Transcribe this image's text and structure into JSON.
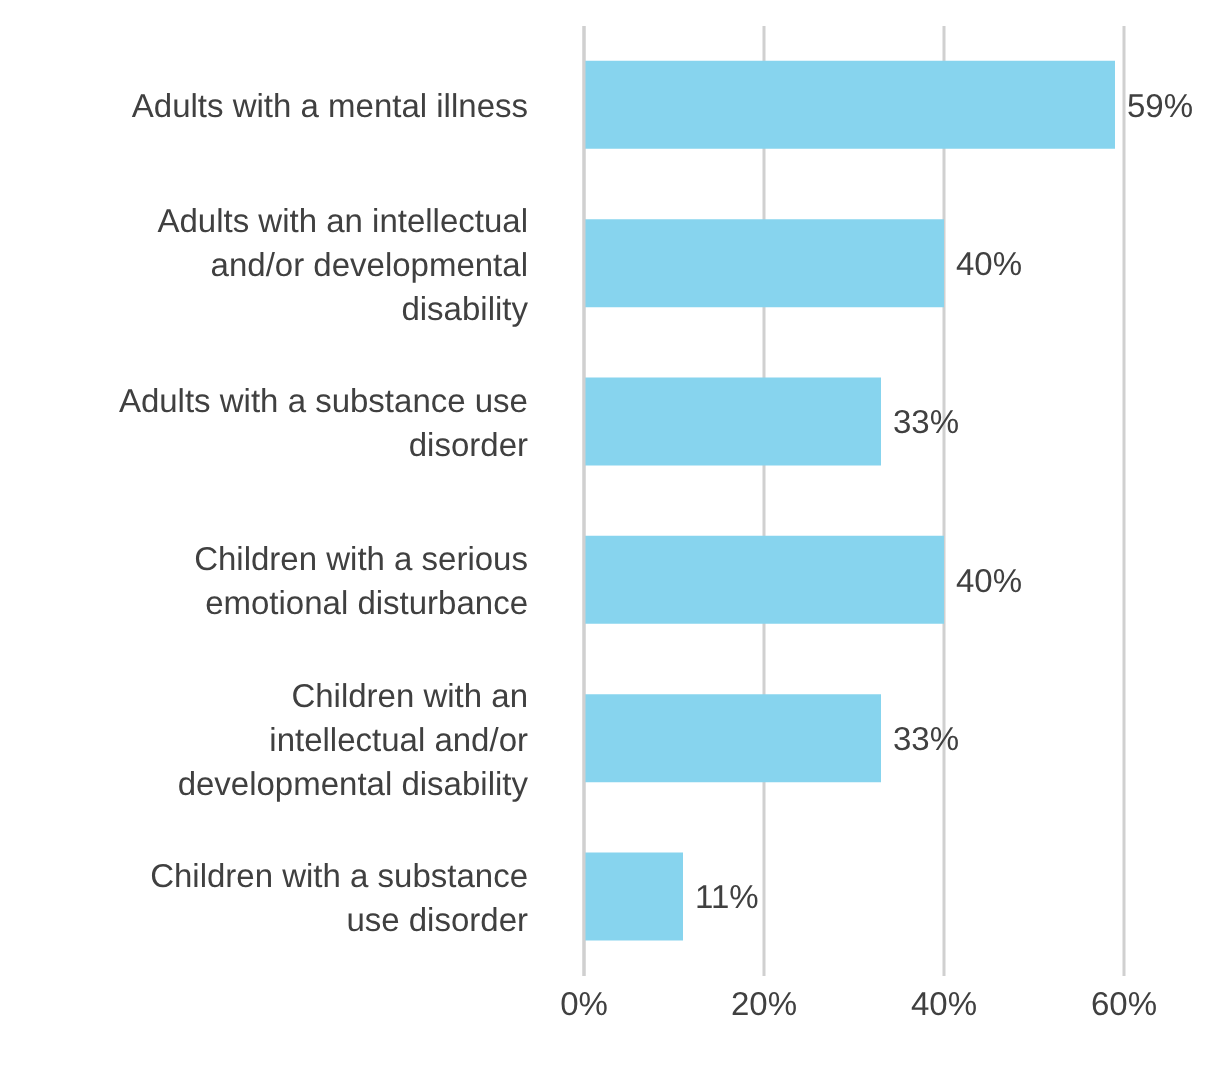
{
  "chart_data": {
    "type": "bar",
    "orientation": "horizontal",
    "categories": [
      "Adults with a mental illness",
      "Adults with an intellectual and/or developmental disability",
      "Adults with a substance use disorder",
      "Children with a serious emotional disturbance",
      "Children with an intellectual and/or developmental disability",
      "Children with a substance use disorder"
    ],
    "values": [
      59,
      40,
      33,
      40,
      33,
      11
    ],
    "value_labels": [
      "59%",
      "40%",
      "33%",
      "40%",
      "33%",
      "11%"
    ],
    "color": "#87d4ee",
    "xlim": [
      0,
      60
    ],
    "xticks": [
      {
        "value": 0,
        "label": "0%"
      },
      {
        "value": 20,
        "label": "20%"
      },
      {
        "value": 40,
        "label": "40%"
      },
      {
        "value": 60,
        "label": "60%"
      }
    ],
    "grid": "x"
  }
}
